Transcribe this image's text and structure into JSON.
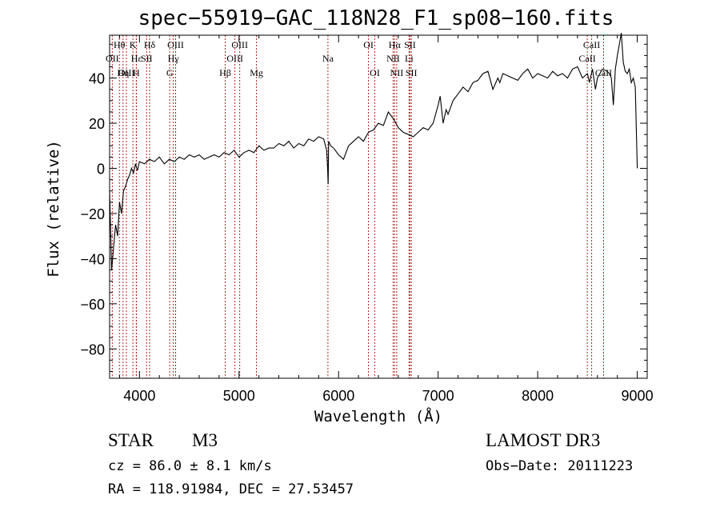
{
  "chart_data": {
    "type": "line",
    "title": "spec−55919−GAC_118N28_F1_sp08−160.fits",
    "xlabel": "Wavelength (Å)",
    "ylabel": "Flux (relative)",
    "xlim": [
      3700,
      9100
    ],
    "ylim": [
      -93,
      59
    ],
    "x_ticks": [
      4000,
      5000,
      6000,
      7000,
      8000,
      9000
    ],
    "x_tick_labels": [
      "4000",
      "5000",
      "6000",
      "7000",
      "8000",
      "9000"
    ],
    "y_ticks": [
      -80,
      -60,
      -40,
      -20,
      0,
      20,
      40
    ],
    "y_tick_labels": [
      "−80",
      "−60",
      "−40",
      "−20",
      "0",
      "20",
      "40"
    ],
    "series": [
      {
        "name": "spectrum",
        "color": "#000000",
        "x": [
          3700,
          3720,
          3740,
          3760,
          3780,
          3800,
          3820,
          3840,
          3860,
          3880,
          3900,
          3920,
          3940,
          3960,
          3980,
          4000,
          4050,
          4100,
          4150,
          4200,
          4250,
          4300,
          4350,
          4400,
          4450,
          4500,
          4550,
          4600,
          4650,
          4700,
          4750,
          4800,
          4850,
          4900,
          4950,
          5000,
          5050,
          5100,
          5150,
          5200,
          5250,
          5300,
          5350,
          5400,
          5450,
          5500,
          5550,
          5600,
          5650,
          5700,
          5750,
          5800,
          5850,
          5880,
          5890,
          5895,
          5900,
          5920,
          5950,
          6000,
          6050,
          6100,
          6150,
          6200,
          6250,
          6300,
          6350,
          6400,
          6450,
          6500,
          6550,
          6600,
          6650,
          6700,
          6750,
          6800,
          6850,
          6900,
          6950,
          7000,
          7020,
          7050,
          7080,
          7100,
          7150,
          7200,
          7250,
          7300,
          7350,
          7400,
          7450,
          7500,
          7550,
          7600,
          7620,
          7650,
          7700,
          7750,
          7800,
          7850,
          7900,
          7950,
          8000,
          8050,
          8100,
          8150,
          8200,
          8250,
          8300,
          8350,
          8400,
          8450,
          8500,
          8520,
          8550,
          8580,
          8600,
          8650,
          8700,
          8720,
          8740,
          8760,
          8780,
          8800,
          8820,
          8840,
          8860,
          8880,
          8900,
          8920,
          8940,
          8960,
          8980,
          9000
        ],
        "y": [
          -10,
          -45,
          -35,
          -25,
          -30,
          -15,
          -20,
          -10,
          -8,
          -5,
          -3,
          0,
          -2,
          2,
          -1,
          3,
          2,
          4,
          3,
          5,
          2,
          4,
          3,
          5,
          4,
          6,
          5,
          6,
          4,
          5,
          6,
          5,
          7,
          6,
          8,
          5,
          7,
          8,
          7,
          10,
          8,
          9,
          9,
          11,
          10,
          12,
          9,
          11,
          10,
          13,
          12,
          14,
          13,
          8,
          0,
          -7,
          12,
          10,
          9,
          6,
          4,
          10,
          12,
          14,
          12,
          16,
          17,
          20,
          19,
          25,
          22,
          18,
          16,
          15,
          14,
          16,
          18,
          17,
          20,
          28,
          32,
          20,
          26,
          24,
          30,
          33,
          36,
          34,
          38,
          39,
          42,
          43,
          35,
          40,
          38,
          42,
          41,
          40,
          39,
          42,
          44,
          40,
          42,
          41,
          40,
          43,
          41,
          42,
          40,
          44,
          45,
          40,
          42,
          38,
          44,
          35,
          40,
          44,
          43,
          42,
          40,
          28,
          44,
          50,
          55,
          60,
          47,
          43,
          42,
          44,
          38,
          40,
          36,
          0
        ]
      }
    ],
    "line_ids": [
      {
        "label": "Hθ",
        "wavelength": 3798,
        "row": 0
      },
      {
        "label": "OII",
        "wavelength": 3727,
        "row": 1
      },
      {
        "label": "OIII",
        "wavelength": 3869,
        "row": 2
      },
      {
        "label": "Hη",
        "wavelength": 3835,
        "row": 2
      },
      {
        "label": "K",
        "wavelength": 3934,
        "row": 0
      },
      {
        "label": "Hε",
        "wavelength": 3970,
        "row": 1
      },
      {
        "label": "H",
        "wavelength": 3968,
        "row": 2
      },
      {
        "label": "SII",
        "wavelength": 4072,
        "row": 1
      },
      {
        "label": "Hδ",
        "wavelength": 4102,
        "row": 0
      },
      {
        "label": "OIII",
        "wavelength": 4363,
        "row": 0
      },
      {
        "label": "Hγ",
        "wavelength": 4340,
        "row": 1
      },
      {
        "label": "G",
        "wavelength": 4304,
        "row": 2
      },
      {
        "label": "Hβ",
        "wavelength": 4861,
        "row": 2
      },
      {
        "label": "OIII",
        "wavelength": 4959,
        "row": 1
      },
      {
        "label": "OIII",
        "wavelength": 5007,
        "row": 0
      },
      {
        "label": "Mg",
        "wavelength": 5175,
        "row": 2
      },
      {
        "label": "Na",
        "wavelength": 5893,
        "row": 1
      },
      {
        "label": "OI",
        "wavelength": 6300,
        "row": 0
      },
      {
        "label": "OI",
        "wavelength": 6364,
        "row": 2
      },
      {
        "label": "Hα",
        "wavelength": 6563,
        "row": 0
      },
      {
        "label": "NII",
        "wavelength": 6548,
        "row": 1
      },
      {
        "label": "NII",
        "wavelength": 6584,
        "row": 2
      },
      {
        "label": "SII",
        "wavelength": 6717,
        "row": 0
      },
      {
        "label": "Li",
        "wavelength": 6708,
        "row": 1
      },
      {
        "label": "SII",
        "wavelength": 6731,
        "row": 2
      },
      {
        "label": "CaII",
        "wavelength": 8542,
        "row": 0
      },
      {
        "label": "CaII",
        "wavelength": 8498,
        "row": 1
      },
      {
        "label": "CaII",
        "wavelength": 8662,
        "row": 2
      }
    ],
    "line_color": "#b22222"
  },
  "info": {
    "obj_class": "STAR",
    "obj_subclass": "M3",
    "survey": "LAMOST DR3",
    "cz": "cz = 86.0 ± 8.1 km/s",
    "obs_date": "Obs−Date: 20111223",
    "radec": "RA = 118.91984, DEC =  27.53457"
  }
}
